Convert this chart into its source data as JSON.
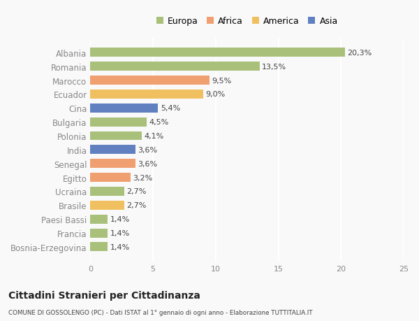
{
  "countries": [
    "Bosnia-Erzegovina",
    "Francia",
    "Paesi Bassi",
    "Brasile",
    "Ucraina",
    "Egitto",
    "Senegal",
    "India",
    "Polonia",
    "Bulgaria",
    "Cina",
    "Ecuador",
    "Marocco",
    "Romania",
    "Albania"
  ],
  "values": [
    1.4,
    1.4,
    1.4,
    2.7,
    2.7,
    3.2,
    3.6,
    3.6,
    4.1,
    4.5,
    5.4,
    9.0,
    9.5,
    13.5,
    20.3
  ],
  "colors": [
    "#a8c07a",
    "#a8c07a",
    "#a8c07a",
    "#f0c060",
    "#a8c07a",
    "#f0a070",
    "#f0a070",
    "#6080c0",
    "#a8c07a",
    "#a8c07a",
    "#6080c0",
    "#f0c060",
    "#f0a070",
    "#a8c07a",
    "#a8c07a"
  ],
  "labels": [
    "1,4%",
    "1,4%",
    "1,4%",
    "2,7%",
    "2,7%",
    "3,2%",
    "3,6%",
    "3,6%",
    "4,1%",
    "4,5%",
    "5,4%",
    "9,0%",
    "9,5%",
    "13,5%",
    "20,3%"
  ],
  "legend_labels": [
    "Europa",
    "Africa",
    "America",
    "Asia"
  ],
  "legend_colors": [
    "#a8c07a",
    "#f0a070",
    "#f0c060",
    "#6080c0"
  ],
  "title": "Cittadini Stranieri per Cittadinanza",
  "subtitle": "COMUNE DI GOSSOLENGO (PC) - Dati ISTAT al 1° gennaio di ogni anno - Elaborazione TUTTITALIA.IT",
  "xlim": [
    0,
    25
  ],
  "xticks": [
    0,
    5,
    10,
    15,
    20,
    25
  ],
  "background_color": "#f9f9f9",
  "grid_color": "#ffffff"
}
